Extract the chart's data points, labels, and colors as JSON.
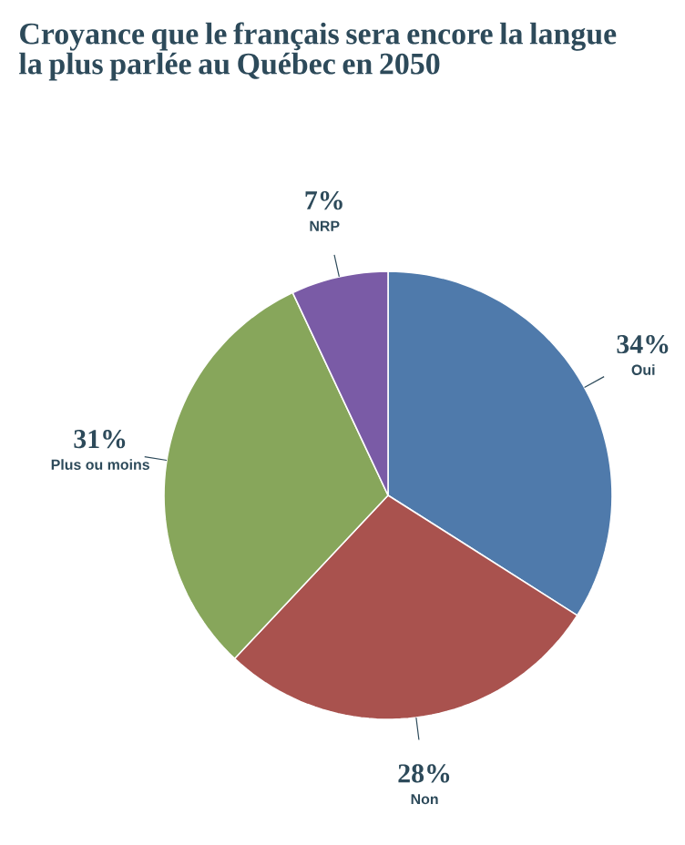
{
  "chart_data": {
    "type": "pie",
    "title": "Croyance que le français sera encore la langue la plus parlée au Québec en 2050",
    "categories": [
      "Oui",
      "Non",
      "Plus ou moins",
      "NRP"
    ],
    "values": [
      34,
      28,
      31,
      7
    ],
    "colors": [
      "#4f7aab",
      "#a9524e",
      "#87a65b",
      "#7a5ba6"
    ],
    "value_labels": [
      "34%",
      "28%",
      "31%",
      "7%"
    ]
  }
}
